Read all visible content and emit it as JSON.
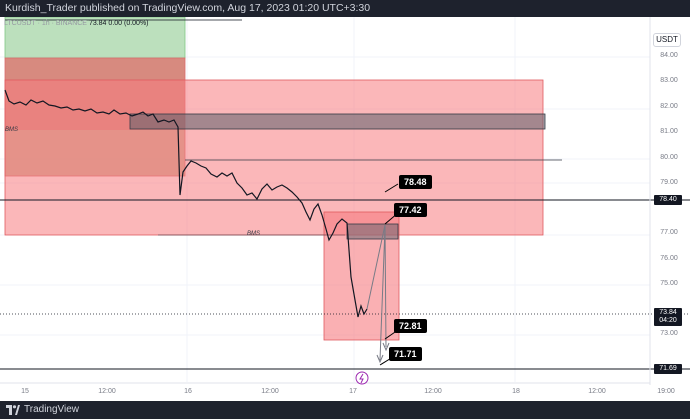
{
  "header": {
    "publisher_line": "Kurdish_Trader published on TradingView.com, Aug 17, 2023 01:20 UTC+3:30"
  },
  "footer": {
    "brand": "TradingView"
  },
  "chart": {
    "currency_button": "USDT",
    "symbol_line": {
      "name": "LTCUSDT · 1h · BINANCE",
      "last": "73.84",
      "change": "0.00 (0.00%)"
    },
    "price_axis": [
      "84.00",
      "83.00",
      "82.00",
      "81.00",
      "80.00",
      "79.00",
      "78.00",
      "77.00",
      "76.00",
      "75.00",
      "74.00",
      "73.00",
      "72.00"
    ],
    "time_axis": [
      "15",
      "12:00",
      "16",
      "12:00",
      "17",
      "12:00",
      "18",
      "12:00",
      "19:00"
    ],
    "axis_labels": {
      "p1": "78.40",
      "p2_line1": "73.84",
      "p2_line2": "04:20",
      "p3": "71.69"
    },
    "tags": {
      "t1": "78.48",
      "t2": "77.42",
      "t3": "72.81",
      "t4": "71.71"
    },
    "notes": {
      "bms_left": "BMS",
      "bms_mid": "BMS"
    },
    "colors": {
      "green_zone": "#a5d6a7",
      "red_zone": "#f77c80",
      "grey_zone": "#787b86"
    }
  }
}
